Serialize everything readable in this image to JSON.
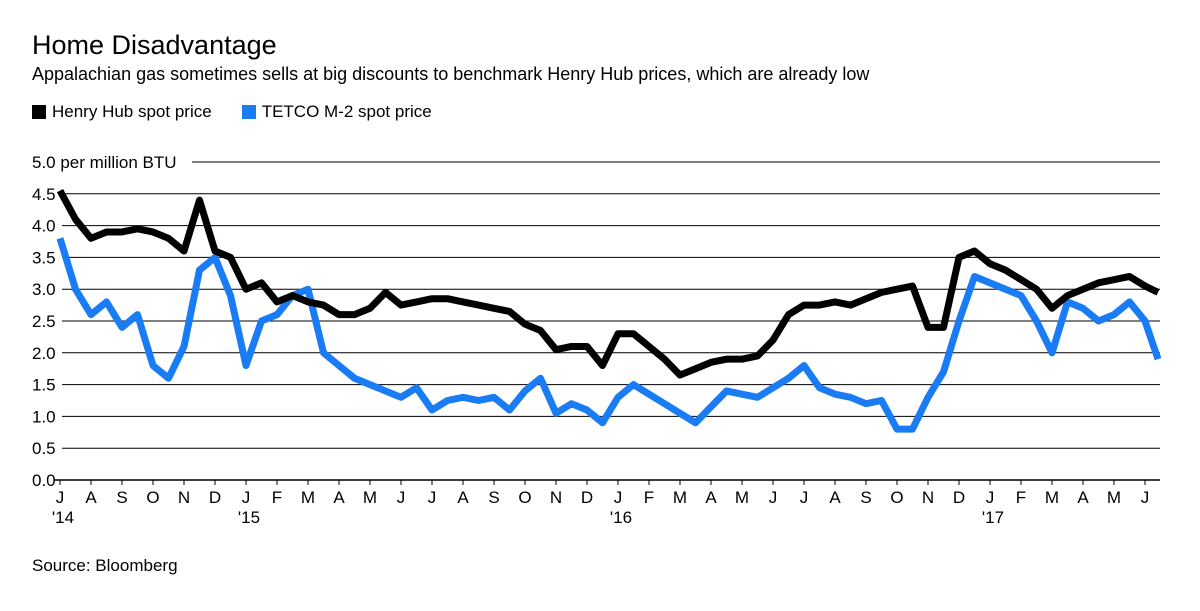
{
  "chart_data": {
    "type": "line",
    "title": "Home Disadvantage",
    "subtitle": "Appalachian gas sometimes sells at big discounts to benchmark Henry Hub prices, which are already low",
    "ylabel": "per million BTU",
    "ylim": [
      0,
      5
    ],
    "yticks": [
      "0.0",
      "0.5",
      "1.0",
      "1.5",
      "2.0",
      "2.5",
      "3.0",
      "3.5",
      "4.0",
      "4.5",
      "5.0"
    ],
    "grid": true,
    "legend_position": "top-left",
    "x_start": "2014-07",
    "x_step": "half-month",
    "xticks": [
      {
        "label": "J",
        "year": "'14"
      },
      {
        "label": "A"
      },
      {
        "label": "S"
      },
      {
        "label": "O"
      },
      {
        "label": "N"
      },
      {
        "label": "D"
      },
      {
        "label": "J",
        "year": "'15"
      },
      {
        "label": "F"
      },
      {
        "label": "M"
      },
      {
        "label": "A"
      },
      {
        "label": "M"
      },
      {
        "label": "J"
      },
      {
        "label": "J"
      },
      {
        "label": "A"
      },
      {
        "label": "S"
      },
      {
        "label": "O"
      },
      {
        "label": "N"
      },
      {
        "label": "D"
      },
      {
        "label": "J",
        "year": "'16"
      },
      {
        "label": "F"
      },
      {
        "label": "M"
      },
      {
        "label": "A"
      },
      {
        "label": "M"
      },
      {
        "label": "J"
      },
      {
        "label": "J"
      },
      {
        "label": "A"
      },
      {
        "label": "S"
      },
      {
        "label": "O"
      },
      {
        "label": "N"
      },
      {
        "label": "D"
      },
      {
        "label": "J",
        "year": "'17"
      },
      {
        "label": "F"
      },
      {
        "label": "M"
      },
      {
        "label": "A"
      },
      {
        "label": "M"
      },
      {
        "label": "J"
      }
    ],
    "series": [
      {
        "name": "Henry Hub spot price",
        "color": "#000000",
        "values": [
          4.55,
          4.1,
          3.8,
          3.9,
          3.9,
          3.95,
          3.9,
          3.8,
          3.6,
          4.4,
          3.6,
          3.5,
          3.0,
          3.1,
          2.8,
          2.9,
          2.8,
          2.75,
          2.6,
          2.6,
          2.7,
          2.95,
          2.75,
          2.8,
          2.85,
          2.85,
          2.8,
          2.75,
          2.7,
          2.65,
          2.45,
          2.35,
          2.05,
          2.1,
          2.1,
          1.8,
          2.3,
          2.3,
          2.1,
          1.9,
          1.65,
          1.75,
          1.85,
          1.9,
          1.9,
          1.95,
          2.2,
          2.6,
          2.75,
          2.75,
          2.8,
          2.75,
          2.85,
          2.95,
          3.0,
          3.05,
          2.4,
          2.4,
          3.5,
          3.6,
          3.4,
          3.3,
          3.15,
          3.0,
          2.7,
          2.9,
          3.0,
          3.1,
          3.15,
          3.2,
          3.05,
          2.95
        ]
      },
      {
        "name": "TETCO M-2 spot price",
        "color": "#1a7cf5",
        "values": [
          3.8,
          3.0,
          2.6,
          2.8,
          2.4,
          2.6,
          1.8,
          1.6,
          2.1,
          3.3,
          3.5,
          2.9,
          1.8,
          2.5,
          2.6,
          2.9,
          3.0,
          2.0,
          1.8,
          1.6,
          1.5,
          1.4,
          1.3,
          1.45,
          1.1,
          1.25,
          1.3,
          1.25,
          1.3,
          1.1,
          1.4,
          1.6,
          1.05,
          1.2,
          1.1,
          0.9,
          1.3,
          1.5,
          1.35,
          1.2,
          1.05,
          0.9,
          1.15,
          1.4,
          1.35,
          1.3,
          1.45,
          1.6,
          1.8,
          1.45,
          1.35,
          1.3,
          1.2,
          1.25,
          0.8,
          0.8,
          1.3,
          1.7,
          2.5,
          3.2,
          3.1,
          3.0,
          2.9,
          2.5,
          2.0,
          2.8,
          2.7,
          2.5,
          2.6,
          2.8,
          2.5,
          1.9
        ]
      }
    ]
  },
  "source": "Source: Bloomberg"
}
